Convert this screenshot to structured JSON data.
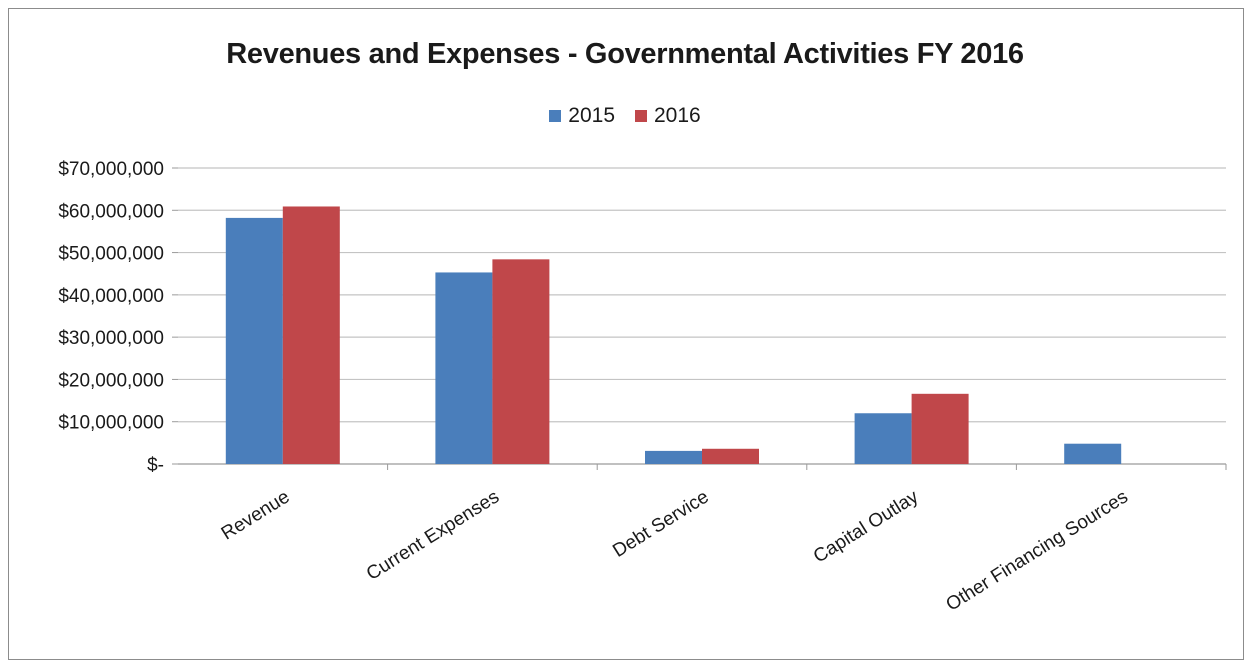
{
  "chart_data": {
    "type": "bar",
    "title": "Revenues and Expenses - Governmental Activities FY 2016",
    "xlabel": "",
    "ylabel": "",
    "categories": [
      "Revenue",
      "Current Expenses",
      "Debt Service",
      "Capital Outlay",
      "Other Financing Sources"
    ],
    "series": [
      {
        "name": "2015",
        "color": "#4a7ebb",
        "values": [
          58200000,
          45300000,
          3100000,
          12000000,
          4800000
        ]
      },
      {
        "name": "2016",
        "color": "#c0474a",
        "values": [
          60900000,
          48400000,
          3600000,
          16600000,
          0
        ]
      }
    ],
    "ylim": [
      0,
      70000000
    ],
    "yticks": [
      0,
      10000000,
      20000000,
      30000000,
      40000000,
      50000000,
      60000000,
      70000000
    ],
    "ytick_labels": [
      "$-",
      "$10,000,000",
      "$20,000,000",
      "$30,000,000",
      "$40,000,000",
      "$50,000,000",
      "$60,000,000",
      "$70,000,000"
    ],
    "grid": true,
    "legend_position": "top-center"
  }
}
